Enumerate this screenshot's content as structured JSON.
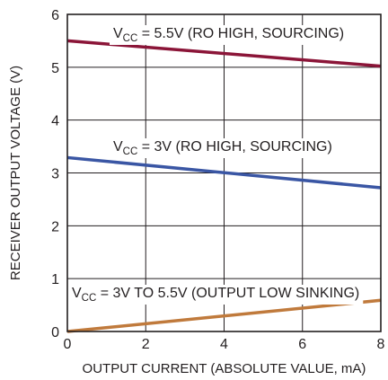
{
  "chart_data": {
    "type": "line",
    "xlabel": "OUTPUT CURRENT (ABSOLUTE VALUE, mA)",
    "ylabel": "RECEIVER OUTPUT VOLTAGE (V)",
    "xlim": [
      0,
      8
    ],
    "ylim": [
      0,
      6
    ],
    "x_ticks": [
      0,
      2,
      4,
      6,
      8
    ],
    "y_ticks": [
      0,
      1,
      2,
      3,
      4,
      5,
      6
    ],
    "grid": true,
    "series": [
      {
        "label_main": "V",
        "label_sub": "CC",
        "label_rest": " = 5.5V (RO HIGH, SOURCING)",
        "color": "#8b1538",
        "x": [
          0,
          8
        ],
        "y": [
          5.5,
          5.02
        ]
      },
      {
        "label_main": "V",
        "label_sub": "CC",
        "label_rest": " = 3V (RO HIGH, SOURCING)",
        "color": "#3a56a4",
        "x": [
          0,
          8
        ],
        "y": [
          3.29,
          2.72
        ]
      },
      {
        "label_main": "V",
        "label_sub": "CC",
        "label_rest": " = 3V TO 5.5V (OUTPUT LOW SINKING)",
        "color": "#c07a3c",
        "x": [
          0,
          8
        ],
        "y": [
          0,
          0.59
        ]
      }
    ]
  }
}
